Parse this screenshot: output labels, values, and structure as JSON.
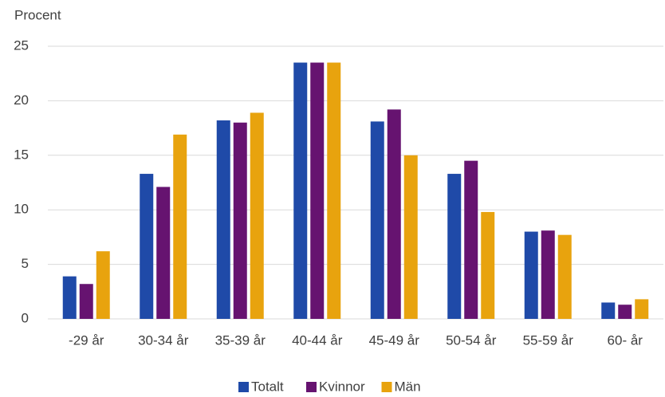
{
  "chart_data": {
    "type": "bar",
    "y_label": "Procent",
    "categories": [
      "-29 år",
      "30-34 år",
      "35-39 år",
      "40-44 år",
      "45-49 år",
      "50-54 år",
      "55-59 år",
      "60- år"
    ],
    "series": [
      {
        "name": "Totalt",
        "color": "#1f4aa8",
        "values": [
          3.9,
          13.3,
          18.2,
          23.5,
          18.1,
          13.3,
          8.0,
          1.5
        ]
      },
      {
        "name": "Kvinnor",
        "color": "#661370",
        "values": [
          3.2,
          12.1,
          18.0,
          23.5,
          19.2,
          14.5,
          8.1,
          1.3
        ]
      },
      {
        "name": "Män",
        "color": "#e8a30e",
        "values": [
          6.2,
          16.9,
          18.9,
          23.5,
          15.0,
          9.8,
          7.7,
          1.8
        ]
      }
    ],
    "ylim": [
      0,
      25
    ],
    "yticks": [
      0,
      5,
      10,
      15,
      20,
      25
    ],
    "grid": true,
    "legend": "bottom"
  }
}
